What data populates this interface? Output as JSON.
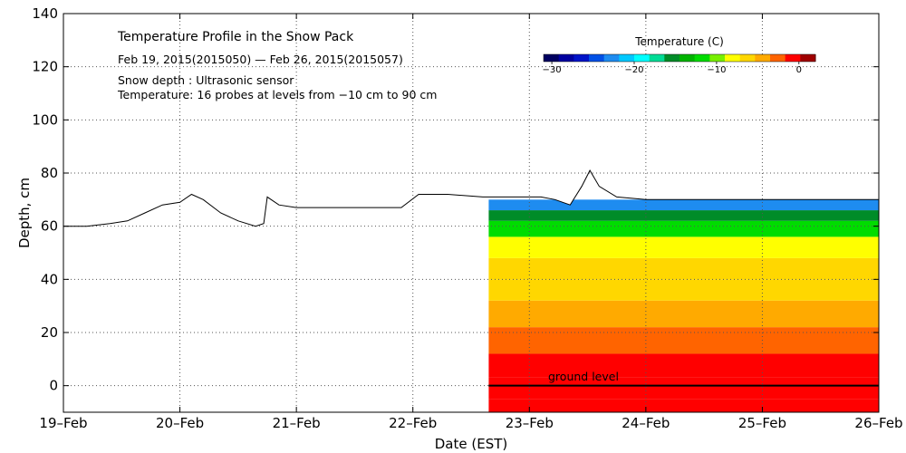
{
  "chart_data": {
    "type": "area",
    "title": "Temperature Profile in the Snow Pack",
    "subtitle": "Feb 19, 2015(2015050) — Feb 26, 2015(2015057)",
    "annotations": [
      "Snow depth : Ultrasonic sensor",
      "Temperature: 16 probes at levels from −10 cm to 90 cm"
    ],
    "ground_label": "ground level",
    "xlabel": "Date (EST)",
    "ylabel": "Depth, cm",
    "xlim": [
      0,
      7
    ],
    "ylim": [
      -10,
      140
    ],
    "x_ticks": [
      0,
      1,
      2,
      3,
      4,
      5,
      6,
      7
    ],
    "x_tick_labels": [
      "19–Feb",
      "20–Feb",
      "21–Feb",
      "22–Feb",
      "23–Feb",
      "24–Feb",
      "25–Feb",
      "26–Feb"
    ],
    "y_ticks": [
      0,
      20,
      40,
      60,
      80,
      100,
      120,
      140
    ],
    "y_tick_labels": [
      "0",
      "20",
      "40",
      "60",
      "80",
      "100",
      "120",
      "140"
    ],
    "grid": true,
    "temperature_start_day": 3.65,
    "colorbar": {
      "title": "Temperature (C)",
      "min": -31,
      "max": 2,
      "tick_values": [
        -30,
        -20,
        -10,
        0
      ],
      "tick_labels": [
        "−30",
        "−20",
        "−10",
        "0"
      ],
      "colors": [
        "#000060",
        "#0000a0",
        "#0014c8",
        "#0050e6",
        "#1e8cf0",
        "#00c8ff",
        "#00ffff",
        "#00dc96",
        "#008c28",
        "#00b400",
        "#00dc00",
        "#78f000",
        "#ffff00",
        "#ffd700",
        "#ffaa00",
        "#ff6400",
        "#ff0000",
        "#a00000"
      ]
    },
    "snow_depth": {
      "name": "Snow depth",
      "x": [
        0,
        0.2,
        0.4,
        0.55,
        0.7,
        0.85,
        1.0,
        1.1,
        1.2,
        1.35,
        1.5,
        1.65,
        1.72,
        1.75,
        1.85,
        2.0,
        2.3,
        2.6,
        2.9,
        3.05,
        3.3,
        3.6,
        3.9,
        4.1,
        4.22,
        4.35,
        4.45,
        4.52,
        4.6,
        4.75,
        5.0,
        5.5,
        6.0,
        6.5,
        7.0
      ],
      "values": [
        60,
        60,
        61,
        62,
        65,
        68,
        69,
        72,
        70,
        65,
        62,
        60,
        61,
        71,
        68,
        67,
        67,
        67,
        67,
        72,
        72,
        71,
        71,
        71,
        70,
        68,
        75,
        81,
        75,
        71,
        70,
        70,
        70,
        70,
        70
      ]
    },
    "temperature_bands": [
      {
        "bottom": -10,
        "top": -5,
        "value": 0
      },
      {
        "bottom": -5,
        "top": 3,
        "value": -0.5
      },
      {
        "bottom": 3,
        "top": 12,
        "value": -1.5
      },
      {
        "bottom": 12,
        "top": 22,
        "value": -2.5
      },
      {
        "bottom": 22,
        "top": 32,
        "value": -4
      },
      {
        "bottom": 32,
        "top": 40,
        "value": -5.5
      },
      {
        "bottom": 40,
        "top": 48,
        "value": -7
      },
      {
        "bottom": 48,
        "top": 56,
        "value": -9
      },
      {
        "bottom": 56,
        "top": 62,
        "value": -12
      },
      {
        "bottom": 62,
        "top": 66,
        "value": -15
      },
      {
        "bottom": 66,
        "top": 70,
        "value": -22
      }
    ]
  }
}
